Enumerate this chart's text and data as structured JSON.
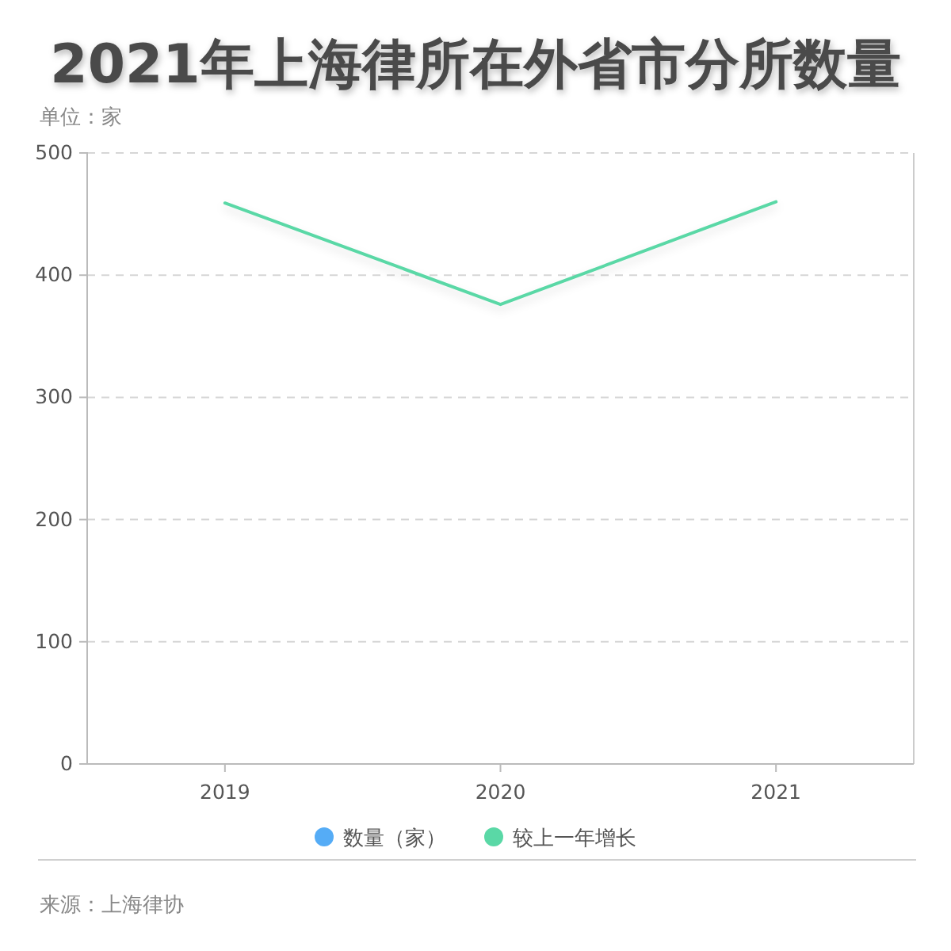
{
  "chart_data": {
    "type": "line",
    "title": "2021年上海律所在外省市分所数量",
    "subtitle": "单位：家",
    "categories": [
      "2019",
      "2020",
      "2021"
    ],
    "series": [
      {
        "name": "数量（家）",
        "color": "#55acf6",
        "values": [
          null,
          null,
          null
        ]
      },
      {
        "name": "较上一年增长",
        "color": "#5ad8a6",
        "values": [
          459,
          376,
          460
        ]
      }
    ],
    "ylim": [
      0,
      500
    ],
    "yticks": [
      0,
      100,
      200,
      300,
      400,
      500
    ],
    "grid": "y",
    "legend": "bottom",
    "annotations": [
      "来源：上海律协"
    ]
  }
}
